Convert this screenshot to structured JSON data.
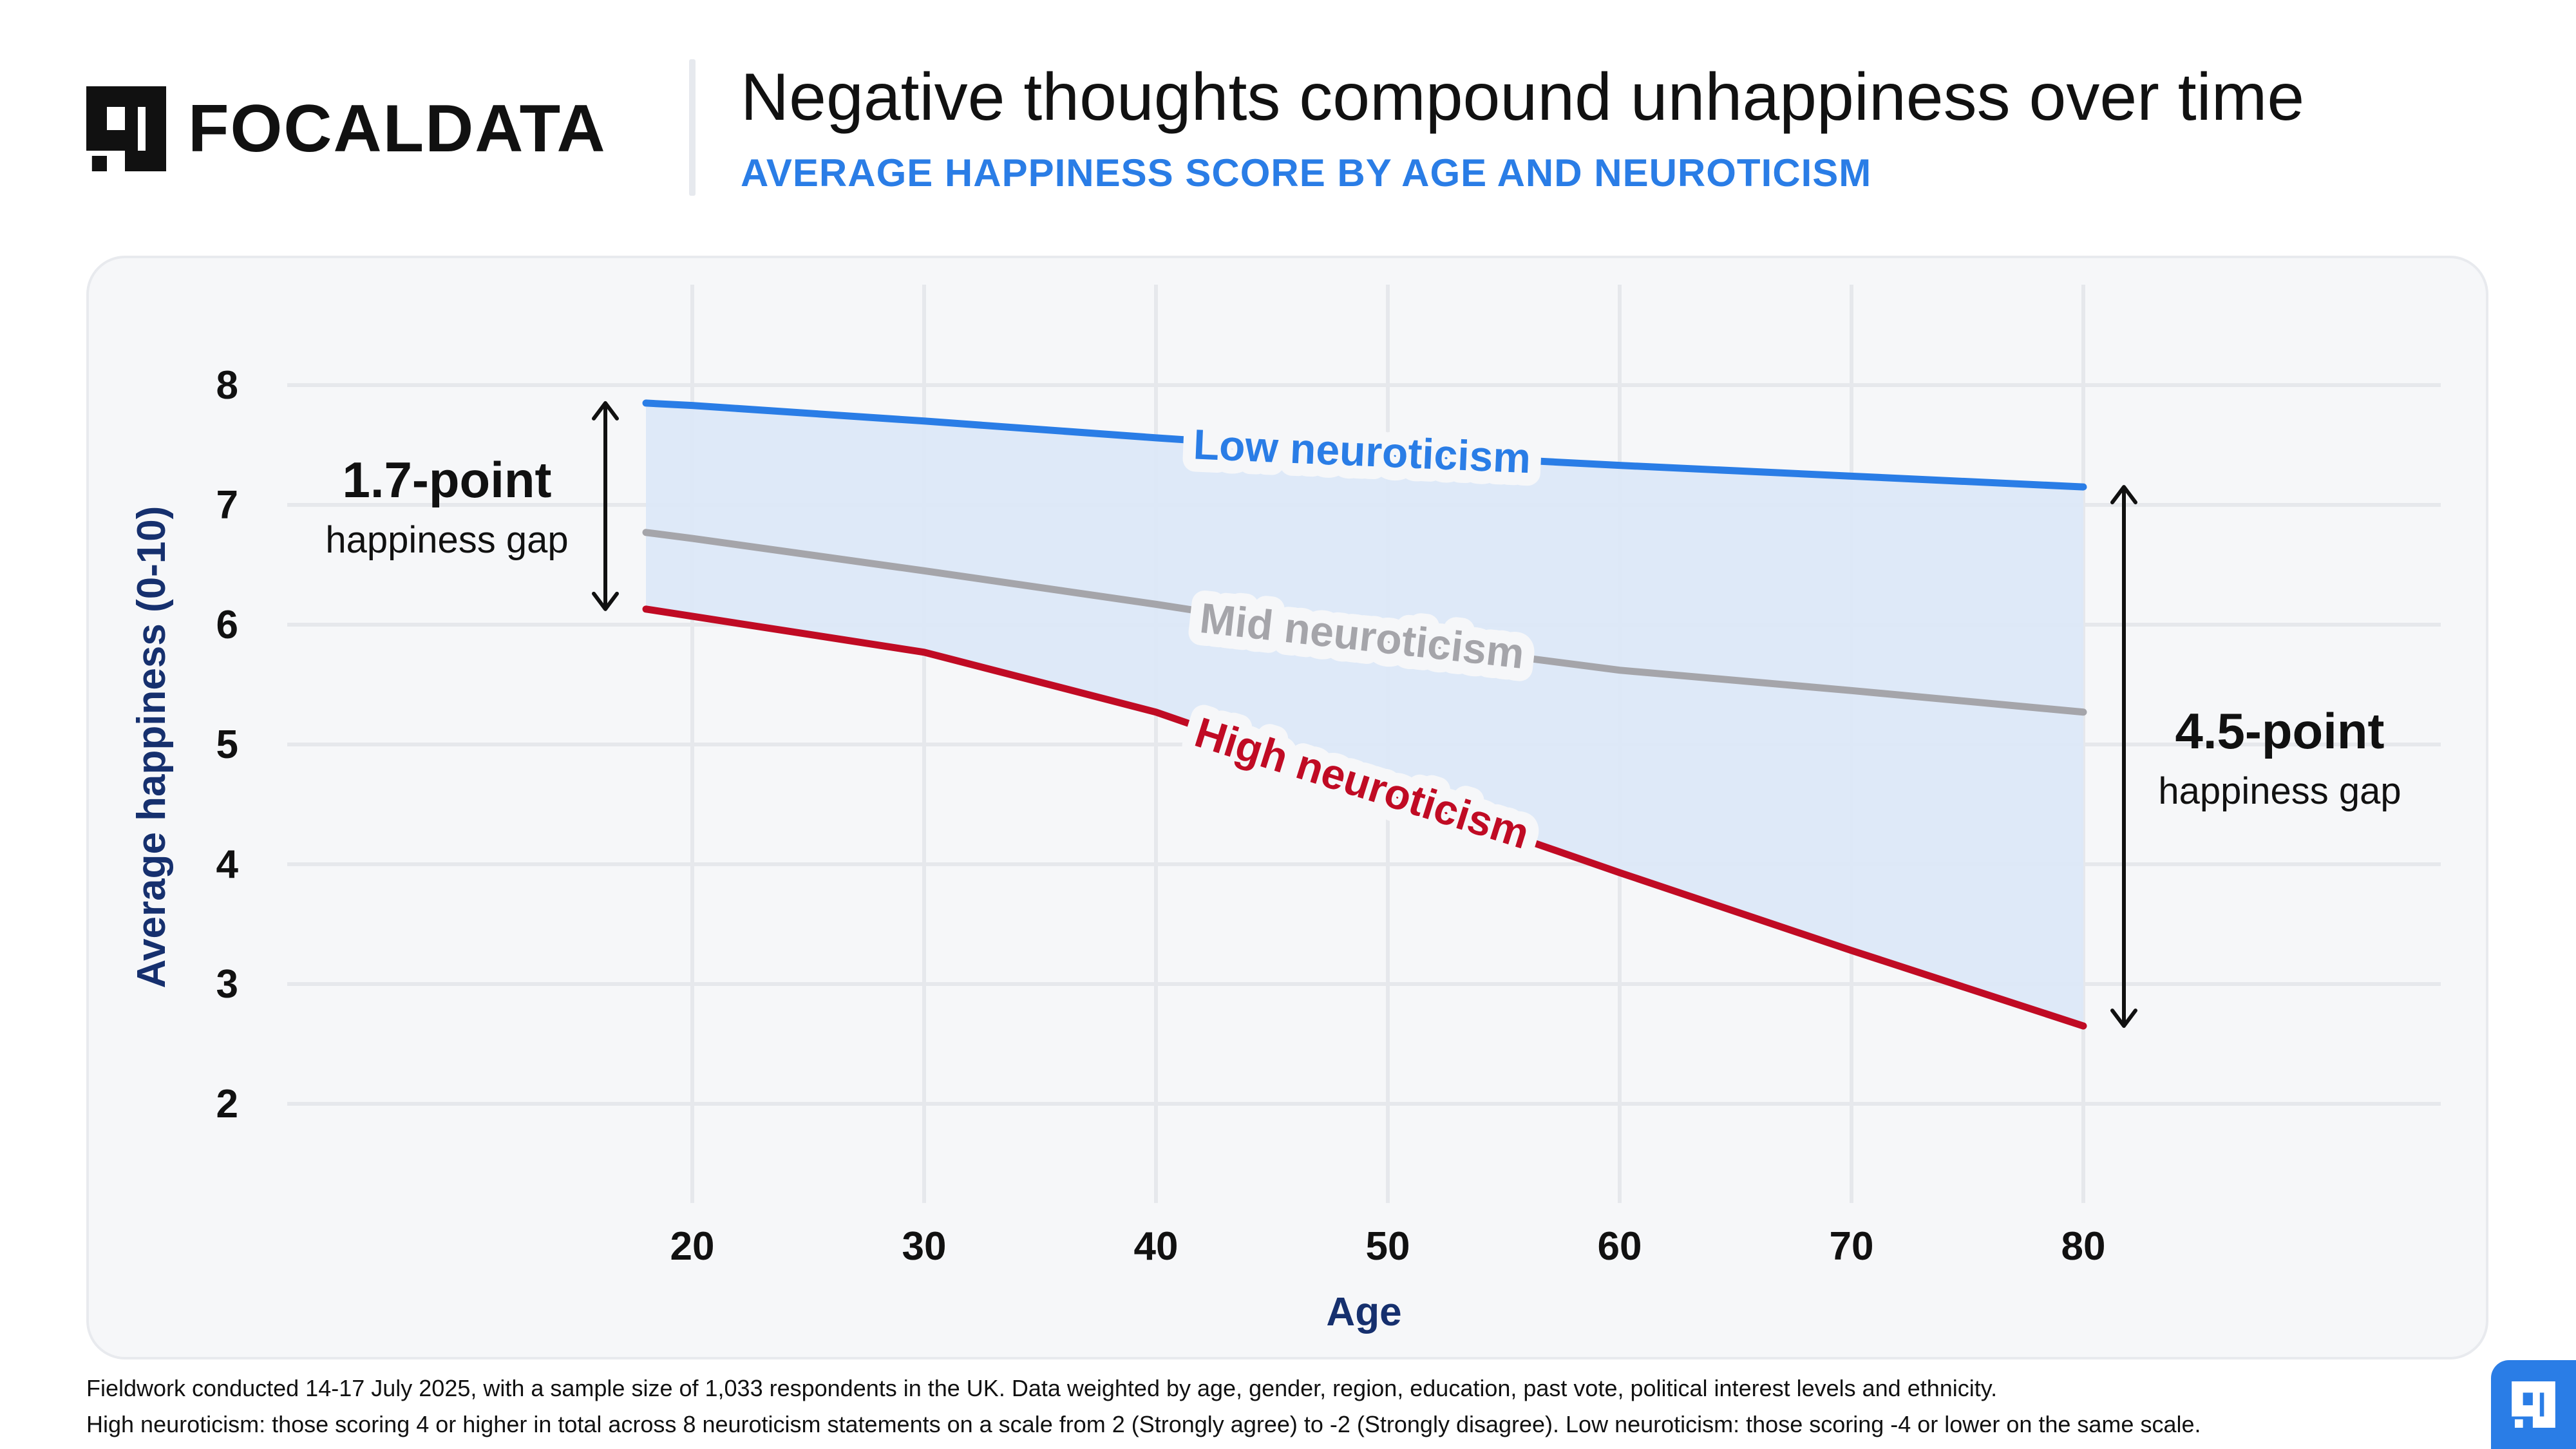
{
  "brand": {
    "name": "FOCALDATA",
    "logo_icon": "focaldata-logo-icon",
    "accent_color": "#2a7de6"
  },
  "header": {
    "title": "Negative thoughts compound unhappiness over time",
    "subtitle": "AVERAGE HAPPINESS SCORE BY AGE AND NEUROTICISM"
  },
  "chart_data": {
    "type": "line",
    "title": "Negative thoughts compound unhappiness over time",
    "subtitle": "AVERAGE HAPPINESS SCORE BY AGE AND NEUROTICISM",
    "xlabel": "Age",
    "ylabel": "Average happiness (0-10)",
    "xlim": [
      18,
      80
    ],
    "ylim": [
      2,
      8
    ],
    "xticks": [
      20,
      30,
      40,
      50,
      60,
      70,
      80
    ],
    "yticks": [
      2,
      3,
      4,
      5,
      6,
      7,
      8
    ],
    "grid": true,
    "legend": "inline labels",
    "series": [
      {
        "name": "Low neuroticism",
        "color": "#2a7de6",
        "x": [
          18,
          20,
          30,
          40,
          50,
          60,
          70,
          80
        ],
        "y": [
          7.85,
          7.83,
          7.7,
          7.56,
          7.43,
          7.33,
          7.24,
          7.15
        ]
      },
      {
        "name": "Mid neuroticism",
        "color": "#a5a5aa",
        "x": [
          18,
          20,
          30,
          40,
          50,
          60,
          70,
          80
        ],
        "y": [
          6.77,
          6.72,
          6.45,
          6.17,
          5.87,
          5.62,
          5.45,
          5.27
        ]
      },
      {
        "name": "High neuroticism",
        "color": "#c00b24",
        "x": [
          18,
          20,
          30,
          40,
          50,
          60,
          70,
          80
        ],
        "y": [
          6.13,
          6.07,
          5.77,
          5.27,
          4.6,
          3.93,
          3.28,
          2.65
        ]
      }
    ],
    "annotations": [
      {
        "id": "gap_start",
        "bold": "1.7-point",
        "text": "happiness gap",
        "x": 18,
        "y_top": 7.85,
        "y_bottom": 6.13
      },
      {
        "id": "gap_end",
        "bold": "4.5-point",
        "text": "happiness gap",
        "x": 80,
        "y_top": 7.15,
        "y_bottom": 2.65
      }
    ],
    "shaded_region": {
      "between": [
        "Low neuroticism",
        "High neuroticism"
      ],
      "color": "#dce8f8"
    }
  },
  "footer": {
    "line1": "Fieldwork conducted 14-17 July 2025, with a sample size of 1,033 respondents in the UK. Data weighted by age, gender, region, education, past vote, political interest levels and ethnicity.",
    "line2": "High neuroticism: those scoring 4 or higher in total across 8 neuroticism statements on a scale from 2 (Strongly agree) to -2 (Strongly disagree). Low neuroticism: those scoring -4 or lower on the same scale."
  }
}
